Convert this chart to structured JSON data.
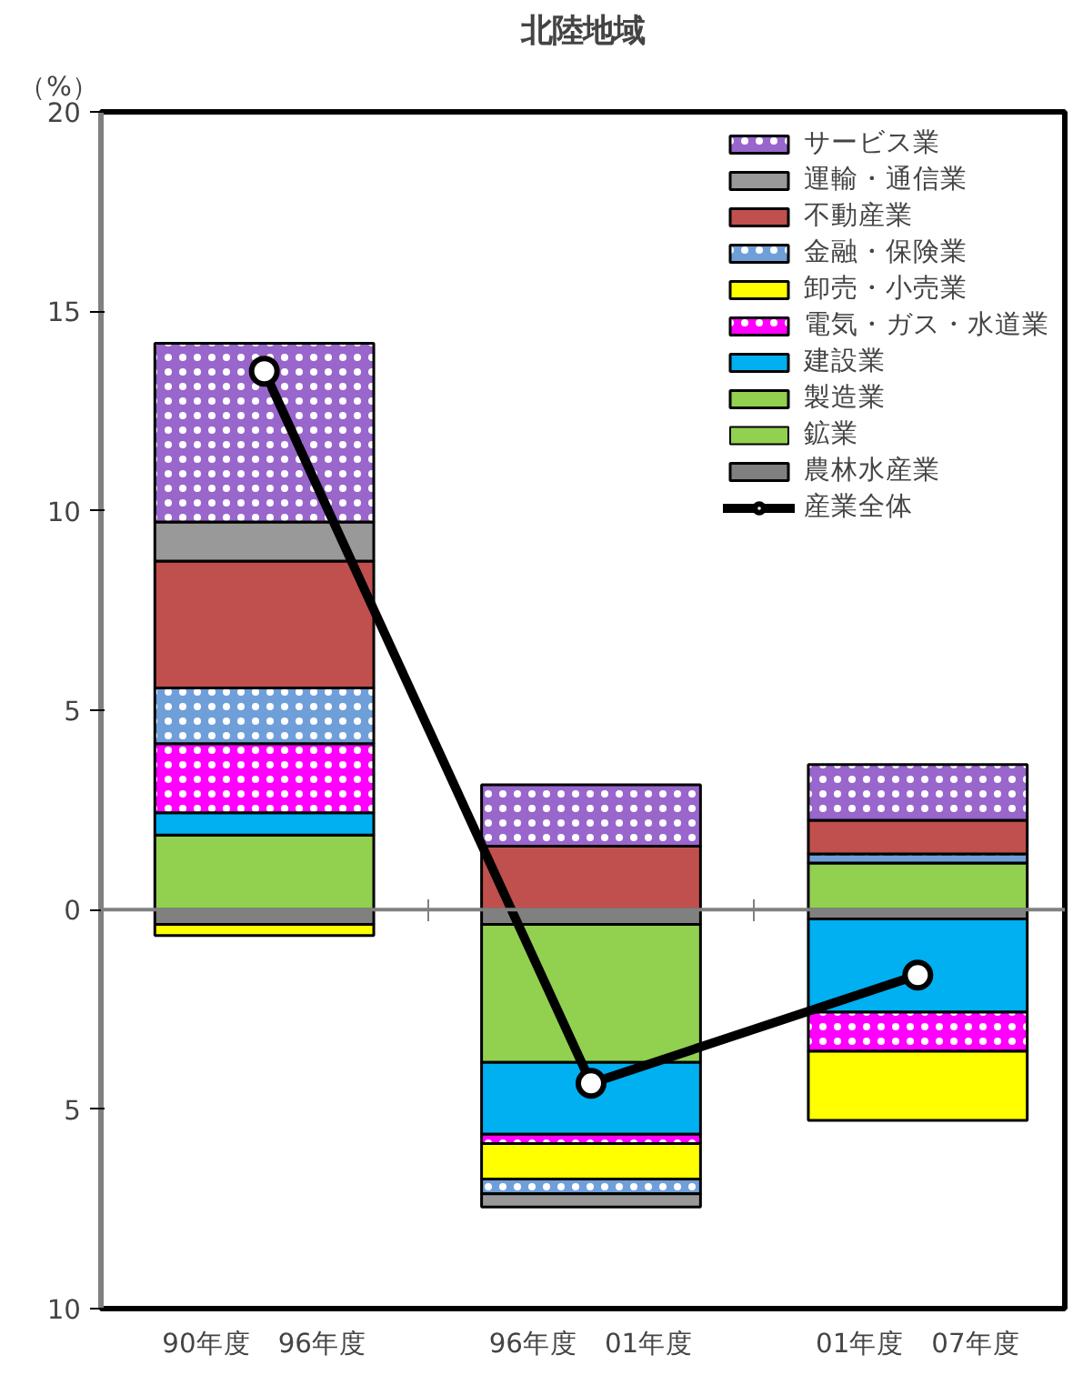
{
  "chart_data": {
    "type": "bar",
    "stacked": true,
    "title": "北陸地域",
    "ylabel": "（%）",
    "categories": [
      "90年度　96年度",
      "96年度　01年度",
      "01年度　07年度"
    ],
    "ylim": [
      -10,
      20
    ],
    "yticks": [
      {
        "value": -10,
        "label": "10"
      },
      {
        "value": -5,
        "label": "5"
      },
      0,
      5,
      10,
      15,
      20
    ],
    "legend": "top right",
    "ref_lines": [
      {
        "axis": "y",
        "value": 0,
        "color": "#808080"
      }
    ],
    "series": [
      {
        "name": "農林水産業",
        "color": "#808080",
        "values": [
          -0.37,
          -0.37,
          -0.23
        ]
      },
      {
        "name": "鉱業",
        "color": "#92d050",
        "values": [
          null,
          null,
          null
        ]
      },
      {
        "name": "製造業",
        "color": "#92d050",
        "values": [
          1.87,
          -3.46,
          1.17
        ]
      },
      {
        "name": "建設業",
        "color": "#00b0f0",
        "values": [
          0.56,
          -1.8,
          -2.34
        ]
      },
      {
        "name": "電気・ガス・水道業",
        "color": "#ff00ff",
        "values": [
          1.73,
          -0.23,
          -0.98
        ]
      },
      {
        "name": "卸売・小売業",
        "color": "#ffff00",
        "values": [
          -0.28,
          -0.89,
          -1.73
        ]
      },
      {
        "name": "金融・保険業",
        "color": "#6f9fd8",
        "values": [
          1.4,
          -0.37,
          0.23
        ]
      },
      {
        "name": "不動産業",
        "color": "#c0504d",
        "values": [
          3.18,
          1.59,
          0.84
        ]
      },
      {
        "name": "運輸・通信業",
        "color": "#999999",
        "values": [
          0.98,
          -0.33,
          null
        ]
      },
      {
        "name": "サービス業",
        "color": "#9966cc",
        "values": [
          4.48,
          1.54,
          1.4
        ]
      },
      {
        "name": "産業全体",
        "type": "line",
        "color": "#000000",
        "marker": "circle",
        "values": [
          13.5,
          -4.35,
          -1.64
        ]
      }
    ]
  }
}
